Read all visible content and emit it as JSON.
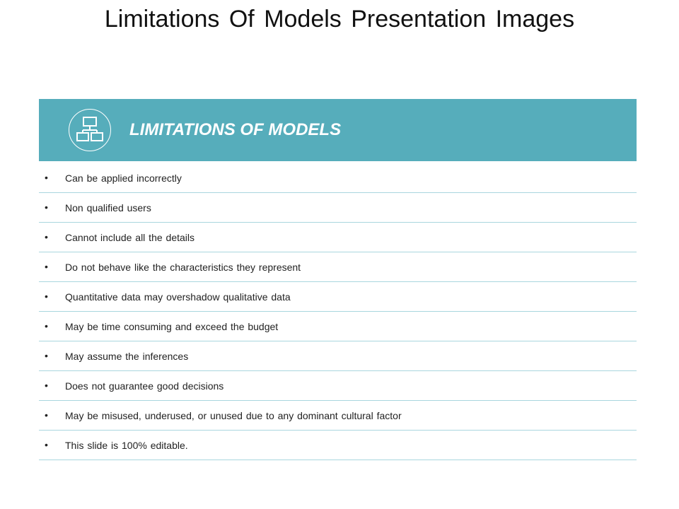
{
  "title": "Limitations Of Models Presentation Images",
  "header": {
    "title": "LIMITATIONS OF MODELS",
    "icon": "hierarchy-icon",
    "color": "#56adbb"
  },
  "items": [
    "Can be applied incorrectly",
    "Non qualified users",
    "Cannot include all the details",
    "Do not behave like the characteristics they represent",
    "Quantitative  data may overshadow qualitative data",
    "May be time consuming and exceed the budget",
    "May assume the inferences",
    "Does not guarantee good decisions",
    "May be misused,  underused,  or unused  due to any  dominant cultural factor",
    "This slide is 100% editable."
  ]
}
